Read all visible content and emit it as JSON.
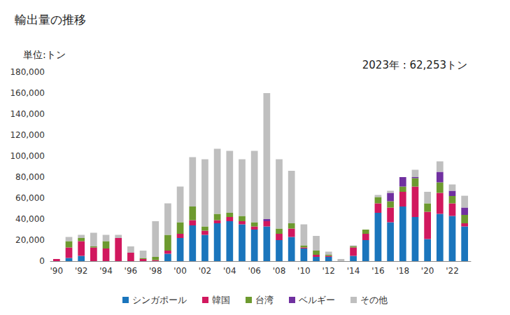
{
  "chart_data": {
    "type": "bar",
    "stacked": true,
    "title": "輸出量の推移",
    "y_label": "単位:トン",
    "annotation": "2023年 : 62,253トン",
    "grid": false,
    "legend": "bottom",
    "categories": [
      "'90",
      null,
      "'92",
      null,
      "'94",
      null,
      "'96",
      null,
      "'98",
      null,
      "'00",
      null,
      "'02",
      null,
      "'04",
      null,
      "'06",
      null,
      "'08",
      null,
      "'10",
      null,
      "'12",
      null,
      "'14",
      null,
      "'16",
      null,
      "'18",
      null,
      "'20",
      null,
      "'22",
      null
    ],
    "ylim": [
      0,
      180000
    ],
    "yticks": [
      0,
      {
        "value": 20000,
        "label": "20,000"
      },
      {
        "value": 40000,
        "label": "40,000"
      },
      {
        "value": 60000,
        "label": "60,000"
      },
      {
        "value": 80000,
        "label": "80,000"
      },
      {
        "value": 100000,
        "label": "100,000"
      },
      {
        "value": 120000,
        "label": "120,000"
      },
      {
        "value": 140000,
        "label": "140,000"
      },
      {
        "value": 160000,
        "label": "160,000"
      },
      {
        "value": 180000,
        "label": "180,000"
      }
    ],
    "series": [
      {
        "name": "シンガポール",
        "color": "#1a75bc",
        "values": [
          0,
          3000,
          5000,
          0,
          0,
          0,
          0,
          0,
          0,
          7000,
          22000,
          34000,
          25000,
          36000,
          38000,
          35000,
          30000,
          33000,
          20000,
          23000,
          12000,
          4000,
          4000,
          0,
          5000,
          20000,
          46000,
          37000,
          52000,
          42000,
          21000,
          45000,
          43000,
          33000
        ]
      },
      {
        "name": "韓国",
        "color": "#d1185e",
        "values": [
          2000,
          10000,
          14000,
          13000,
          12000,
          22000,
          8000,
          2000,
          1000,
          3000,
          4000,
          5000,
          4000,
          3000,
          4000,
          3000,
          3000,
          5000,
          6000,
          8000,
          1000,
          2000,
          1000,
          0,
          8000,
          6000,
          9000,
          14000,
          14000,
          29000,
          26000,
          20000,
          12000,
          3000
        ]
      },
      {
        "name": "台湾",
        "color": "#6d9a2f",
        "values": [
          0,
          6000,
          3000,
          1000,
          7000,
          0,
          0,
          1000,
          3000,
          15000,
          11000,
          13000,
          4000,
          6000,
          4000,
          5000,
          4000,
          0,
          5000,
          5000,
          2000,
          4000,
          1000,
          0,
          1000,
          4000,
          6000,
          6000,
          5000,
          8000,
          8000,
          10000,
          7000,
          8000
        ]
      },
      {
        "name": "ベルギー",
        "color": "#7030a0",
        "values": [
          0,
          0,
          0,
          0,
          0,
          0,
          0,
          0,
          0,
          0,
          0,
          0,
          0,
          0,
          0,
          0,
          0,
          2000,
          0,
          0,
          0,
          0,
          0,
          0,
          0,
          0,
          0,
          8000,
          9000,
          1000,
          0,
          10000,
          5000,
          7000
        ]
      },
      {
        "name": "その他",
        "color": "#bfbfbf",
        "values": [
          0,
          4000,
          3000,
          13000,
          6000,
          3000,
          6000,
          7000,
          34000,
          30000,
          34000,
          47000,
          64000,
          62000,
          59000,
          54000,
          68000,
          120000,
          66000,
          50000,
          20000,
          14000,
          3000,
          2000,
          1000,
          0,
          2000,
          2000,
          0,
          7000,
          11000,
          10000,
          6000,
          11253
        ]
      }
    ]
  }
}
